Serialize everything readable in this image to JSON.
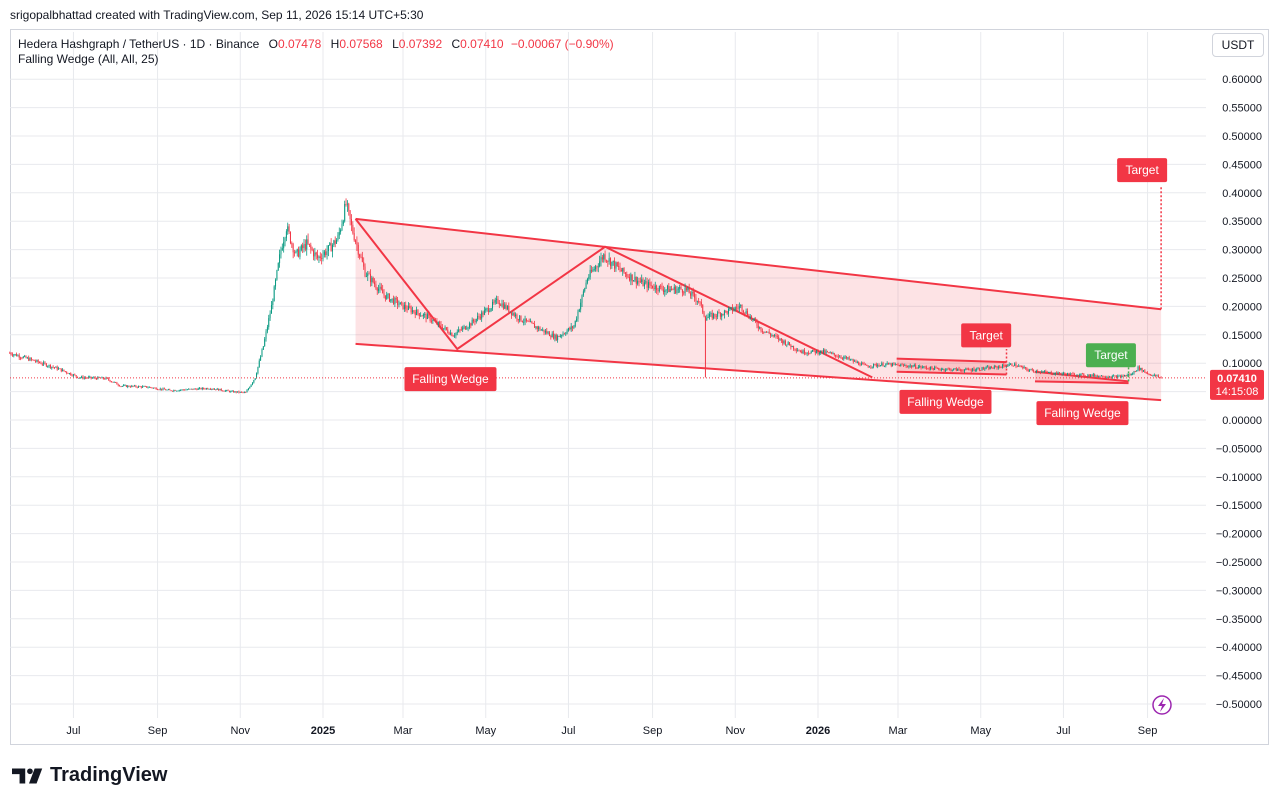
{
  "header": {
    "attribution": "srigopalbhattad created with TradingView.com, Sep 11, 2026 15:14 UTC+5:30"
  },
  "legend": {
    "symbol": "Hedera Hashgraph / TetherUS · 1D · Binance",
    "open_label": "O",
    "open": "0.07478",
    "high_label": "H",
    "high": "0.07568",
    "low_label": "L",
    "low": "0.07392",
    "close_label": "C",
    "close": "0.07410",
    "change": "−0.00067 (−0.90%)",
    "indicator": "Falling Wedge (All, All, 25)"
  },
  "currency_button": "USDT",
  "price_label": {
    "price": "0.07410",
    "countdown": "14:15:08"
  },
  "brand": "TradingView",
  "colors": {
    "up": "#089981",
    "down": "#f23645",
    "wedge_line": "#f23645",
    "wedge_fill": "#f23645",
    "target_green": "#4caf50",
    "axis_text": "#131722",
    "grid": "#e8eaee"
  },
  "chart_data": {
    "type": "candlestick",
    "title": "Hedera Hashgraph / TetherUS · 1D · Binance",
    "y_ticks": [
      "0.60000",
      "0.55000",
      "0.50000",
      "0.45000",
      "0.40000",
      "0.35000",
      "0.30000",
      "0.25000",
      "0.20000",
      "0.15000",
      "0.10000",
      "0.05000",
      "0.00000",
      "−0.05000",
      "−0.10000",
      "−0.15000",
      "−0.20000",
      "−0.25000",
      "−0.30000",
      "−0.35000",
      "−0.40000",
      "−0.45000",
      "−0.50000"
    ],
    "y_tick_values": [
      0.6,
      0.55,
      0.5,
      0.45,
      0.4,
      0.35,
      0.3,
      0.25,
      0.2,
      0.15,
      0.1,
      0.05,
      0,
      -0.05,
      -0.1,
      -0.15,
      -0.2,
      -0.25,
      -0.3,
      -0.35,
      -0.4,
      -0.45,
      -0.5
    ],
    "ylim": [
      -0.52,
      0.635
    ],
    "x_ticks": [
      {
        "label": "Jul",
        "date": "2024-07-01",
        "bold": false
      },
      {
        "label": "Sep",
        "date": "2024-09-01",
        "bold": false
      },
      {
        "label": "Nov",
        "date": "2024-11-01",
        "bold": false
      },
      {
        "label": "2025",
        "date": "2025-01-01",
        "bold": true
      },
      {
        "label": "Mar",
        "date": "2025-03-01",
        "bold": false
      },
      {
        "label": "May",
        "date": "2025-05-01",
        "bold": false
      },
      {
        "label": "Jul",
        "date": "2025-07-01",
        "bold": false
      },
      {
        "label": "Sep",
        "date": "2025-09-01",
        "bold": false
      },
      {
        "label": "Nov",
        "date": "2025-11-01",
        "bold": false
      },
      {
        "label": "2026",
        "date": "2026-01-01",
        "bold": true
      },
      {
        "label": "Mar",
        "date": "2026-03-01",
        "bold": false
      },
      {
        "label": "May",
        "date": "2026-05-01",
        "bold": false
      },
      {
        "label": "Jul",
        "date": "2026-07-01",
        "bold": false
      },
      {
        "label": "Sep",
        "date": "2026-09-01",
        "bold": false
      }
    ],
    "xlim": [
      "2024-05-15",
      "2026-09-25"
    ],
    "price_path": [
      [
        "2024-05-15",
        0.118
      ],
      [
        "2024-06-01",
        0.105
      ],
      [
        "2024-06-20",
        0.09
      ],
      [
        "2024-07-05",
        0.075
      ],
      [
        "2024-07-25",
        0.073
      ],
      [
        "2024-08-05",
        0.06
      ],
      [
        "2024-08-25",
        0.058
      ],
      [
        "2024-09-10",
        0.052
      ],
      [
        "2024-09-25",
        0.054
      ],
      [
        "2024-10-10",
        0.056
      ],
      [
        "2024-10-25",
        0.05
      ],
      [
        "2024-11-05",
        0.048
      ],
      [
        "2024-11-12",
        0.075
      ],
      [
        "2024-11-18",
        0.13
      ],
      [
        "2024-11-24",
        0.2
      ],
      [
        "2024-12-01",
        0.3
      ],
      [
        "2024-12-05",
        0.34
      ],
      [
        "2024-12-12",
        0.29
      ],
      [
        "2024-12-20",
        0.31
      ],
      [
        "2024-12-28",
        0.285
      ],
      [
        "2025-01-05",
        0.3
      ],
      [
        "2025-01-12",
        0.32
      ],
      [
        "2025-01-18",
        0.38
      ],
      [
        "2025-01-22",
        0.34
      ],
      [
        "2025-02-01",
        0.26
      ],
      [
        "2025-02-15",
        0.22
      ],
      [
        "2025-03-01",
        0.2
      ],
      [
        "2025-03-20",
        0.18
      ],
      [
        "2025-04-07",
        0.15
      ],
      [
        "2025-04-20",
        0.17
      ],
      [
        "2025-05-10",
        0.21
      ],
      [
        "2025-05-25",
        0.18
      ],
      [
        "2025-06-10",
        0.16
      ],
      [
        "2025-06-22",
        0.145
      ],
      [
        "2025-07-05",
        0.165
      ],
      [
        "2025-07-15",
        0.25
      ],
      [
        "2025-07-27",
        0.29
      ],
      [
        "2025-08-10",
        0.26
      ],
      [
        "2025-08-25",
        0.24
      ],
      [
        "2025-09-10",
        0.23
      ],
      [
        "2025-09-25",
        0.23
      ],
      [
        "2025-10-05",
        0.21
      ],
      [
        "2025-10-10",
        0.18
      ],
      [
        "2025-10-25",
        0.19
      ],
      [
        "2025-11-05",
        0.2
      ],
      [
        "2025-11-20",
        0.16
      ],
      [
        "2025-12-05",
        0.14
      ],
      [
        "2025-12-20",
        0.12
      ],
      [
        "2026-01-05",
        0.12
      ],
      [
        "2026-01-20",
        0.11
      ],
      [
        "2026-02-05",
        0.095
      ],
      [
        "2026-02-20",
        0.098
      ],
      [
        "2026-03-10",
        0.095
      ],
      [
        "2026-03-30",
        0.09
      ],
      [
        "2026-04-20",
        0.088
      ],
      [
        "2026-05-10",
        0.092
      ],
      [
        "2026-05-25",
        0.098
      ],
      [
        "2026-06-05",
        0.088
      ],
      [
        "2026-06-20",
        0.083
      ],
      [
        "2026-07-10",
        0.08
      ],
      [
        "2026-07-25",
        0.078
      ],
      [
        "2026-08-10",
        0.076
      ],
      [
        "2026-08-20",
        0.08
      ],
      [
        "2026-08-25",
        0.092
      ],
      [
        "2026-09-01",
        0.082
      ],
      [
        "2026-09-11",
        0.0741
      ]
    ],
    "last_price": 0.0741,
    "wedges": [
      {
        "polygon": [
          [
            "2025-01-25",
            0.354
          ],
          [
            "2026-09-11",
            0.195
          ],
          [
            "2026-09-11",
            0.035
          ],
          [
            "2025-01-25",
            0.134
          ]
        ],
        "label": "Falling Wedge",
        "label_anchor": [
          "2025-04-05",
          0.072
        ]
      },
      {
        "polygon": [
          [
            "2026-02-28",
            0.108
          ],
          [
            "2026-05-20",
            0.102
          ],
          [
            "2026-05-20",
            0.08
          ],
          [
            "2026-02-28",
            0.085
          ]
        ],
        "label": "Falling Wedge",
        "label_anchor": [
          "2026-04-05",
          0.032
        ]
      },
      {
        "polygon": [
          [
            "2026-06-10",
            0.085
          ],
          [
            "2026-08-18",
            0.068
          ],
          [
            "2026-08-18",
            0.065
          ],
          [
            "2026-06-10",
            0.068
          ]
        ],
        "label": "Falling Wedge",
        "label_anchor": [
          "2026-07-15",
          0.012
        ]
      }
    ],
    "zigzag": [
      [
        "2025-01-25",
        0.354
      ],
      [
        "2025-04-10",
        0.125
      ],
      [
        "2025-07-28",
        0.305
      ],
      [
        "2026-02-10",
        0.075
      ]
    ],
    "targets": [
      {
        "label": "Target",
        "color": "red",
        "from": [
          "2026-09-11",
          0.195
        ],
        "to": [
          "2026-09-11",
          0.41
        ],
        "label_anchor": [
          "2026-08-28",
          0.44
        ]
      },
      {
        "label": "Target",
        "color": "red",
        "from": [
          "2026-05-20",
          0.08
        ],
        "to": [
          "2026-05-20",
          0.125
        ],
        "label_anchor": [
          "2026-05-05",
          0.149
        ]
      },
      {
        "label": "Target",
        "color": "green",
        "from": [
          "2026-08-18",
          0.068
        ],
        "to": [
          "2026-08-18",
          0.095
        ],
        "label_anchor": [
          "2026-08-05",
          0.114
        ]
      }
    ]
  }
}
